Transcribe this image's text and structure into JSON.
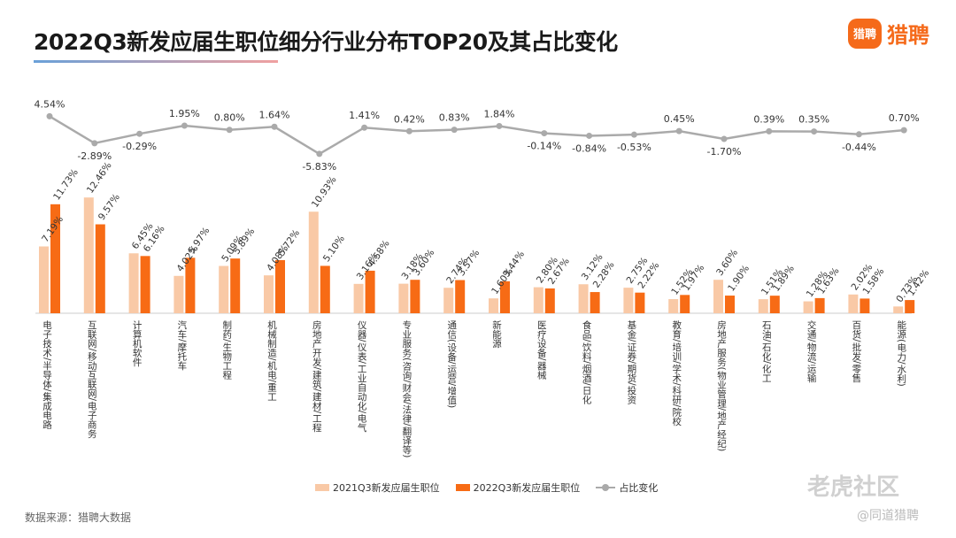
{
  "title": "2022Q3新发应届生职位细分行业分布TOP20及其占比变化",
  "logo": {
    "badge": "猎聘",
    "text": "猎聘"
  },
  "source": "数据来源：猎聘大数据",
  "watermark": {
    "main": "老虎社区",
    "sub": "@同道猎聘"
  },
  "colors": {
    "bar2021": "#f9c9a6",
    "bar2022": "#f76b15",
    "line": "#aaaaaa"
  },
  "chart_data": {
    "type": "bar",
    "title": "2022Q3新发应届生职位细分行业分布TOP20及其占比变化",
    "categories": [
      "电子技术/半导体/集成电路",
      "互联网/移动互联网/电子商务",
      "计算机软件",
      "汽车/摩托车",
      "制药/生物工程",
      "机械制造/机电/重工",
      "房地产开发/建筑/建材/工程",
      "仪器/仪表/工业自动化/电气",
      "专业服务(咨询/财会/法律/翻译等)",
      "通信(设备/运营/增值)",
      "新能源",
      "医疗设备/器械",
      "食品/饮料/烟酒/日化",
      "基金/证券/期货/投资",
      "教育/培训/学术/科研/院校",
      "房地产服务(物业管理/地产经纪)",
      "石油/石化/化工",
      "交通/物流/运输",
      "百货/批发/零售",
      "能源(电力/水利)"
    ],
    "series": [
      {
        "name": "2021Q3新发应届生职位",
        "labels": [
          "7.19%",
          "12.46%",
          "6.45%",
          "4.02%",
          "5.09%",
          "4.08%",
          "10.93%",
          "3.16%",
          "3.18%",
          "2.74%",
          "1.60%",
          "2.80%",
          "3.12%",
          "2.75%",
          "1.52%",
          "3.60%",
          "1.51%",
          "1.28%",
          "2.02%",
          "0.73%"
        ],
        "values": [
          7.19,
          12.46,
          6.45,
          4.02,
          5.09,
          4.08,
          10.93,
          3.16,
          3.18,
          2.74,
          1.6,
          2.8,
          3.12,
          2.75,
          1.52,
          3.6,
          1.51,
          1.28,
          2.02,
          0.73
        ]
      },
      {
        "name": "2022Q3新发应届生职位",
        "labels": [
          "11.73%",
          "9.57%",
          "6.16%",
          "5.97%",
          "5.89%",
          "5.72%",
          "5.10%",
          "4.58%",
          "3.60%",
          "3.57%",
          "3.44%",
          "2.67%",
          "2.28%",
          "2.22%",
          "1.97%",
          "1.90%",
          "1.89%",
          "1.63%",
          "1.58%",
          "1.42%"
        ],
        "values": [
          11.73,
          9.57,
          6.16,
          5.97,
          5.89,
          5.72,
          5.1,
          4.58,
          3.6,
          3.57,
          3.44,
          2.67,
          2.28,
          2.22,
          1.97,
          1.9,
          1.89,
          1.63,
          1.58,
          1.42
        ]
      },
      {
        "name": "占比变化",
        "type": "line",
        "labels": [
          "4.54%",
          "-2.89%",
          "-0.29%",
          "1.95%",
          "0.80%",
          "1.64%",
          "-5.83%",
          "1.41%",
          "0.42%",
          "0.83%",
          "1.84%",
          "-0.14%",
          "-0.84%",
          "-0.53%",
          "0.45%",
          "-1.70%",
          "0.39%",
          "0.35%",
          "-0.44%",
          "0.70%"
        ],
        "values": [
          4.54,
          -2.89,
          -0.29,
          1.95,
          0.8,
          1.64,
          -5.83,
          1.41,
          0.42,
          0.83,
          1.84,
          -0.14,
          -0.84,
          -0.53,
          0.45,
          -1.7,
          0.39,
          0.35,
          -0.44,
          0.7
        ]
      }
    ],
    "legend_position": "bottom",
    "grid": false
  }
}
